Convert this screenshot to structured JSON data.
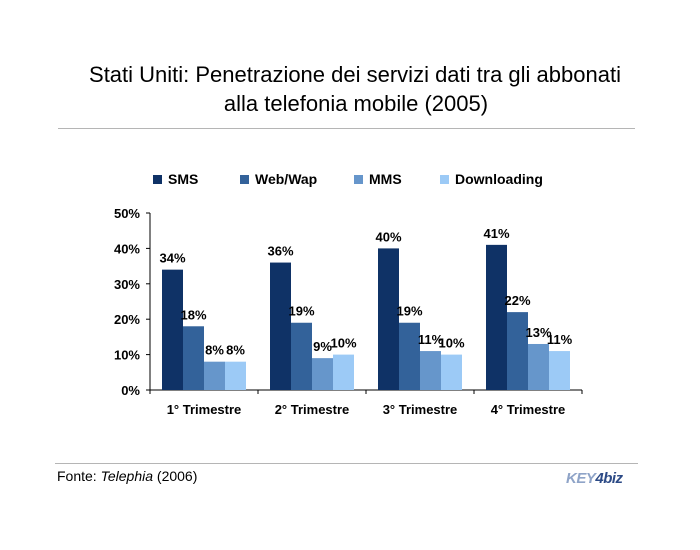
{
  "title_line1": "Stati Uniti: Penetrazione dei servizi dati tra gli abbonati",
  "title_line2": "alla telefonia mobile (2005)",
  "footer": {
    "prefix": "Fonte: ",
    "source": "Telephia",
    "suffix": " (2006)"
  },
  "logo": {
    "part1": "KEY",
    "part2": "4",
    "part3": "biz"
  },
  "colors": {
    "SMS": "#0f3266",
    "Web/Wap": "#33629a",
    "MMS": "#6696cb",
    "Downloading": "#9ccaf6"
  },
  "chart_data": {
    "type": "bar",
    "categories": [
      "1° Trimestre",
      "2° Trimestre",
      "3° Trimestre",
      "4° Trimestre"
    ],
    "series": [
      {
        "name": "SMS",
        "values": [
          34,
          36,
          40,
          41
        ]
      },
      {
        "name": "Web/Wap",
        "values": [
          18,
          19,
          19,
          22
        ]
      },
      {
        "name": "MMS",
        "values": [
          8,
          9,
          11,
          13
        ]
      },
      {
        "name": "Downloading",
        "values": [
          8,
          10,
          10,
          11
        ]
      }
    ],
    "ylim": [
      0,
      50
    ],
    "yticks": [
      "0%",
      "10%",
      "20%",
      "30%",
      "40%",
      "50%"
    ],
    "value_suffix": "%",
    "legend_position": "top",
    "grid": false
  }
}
